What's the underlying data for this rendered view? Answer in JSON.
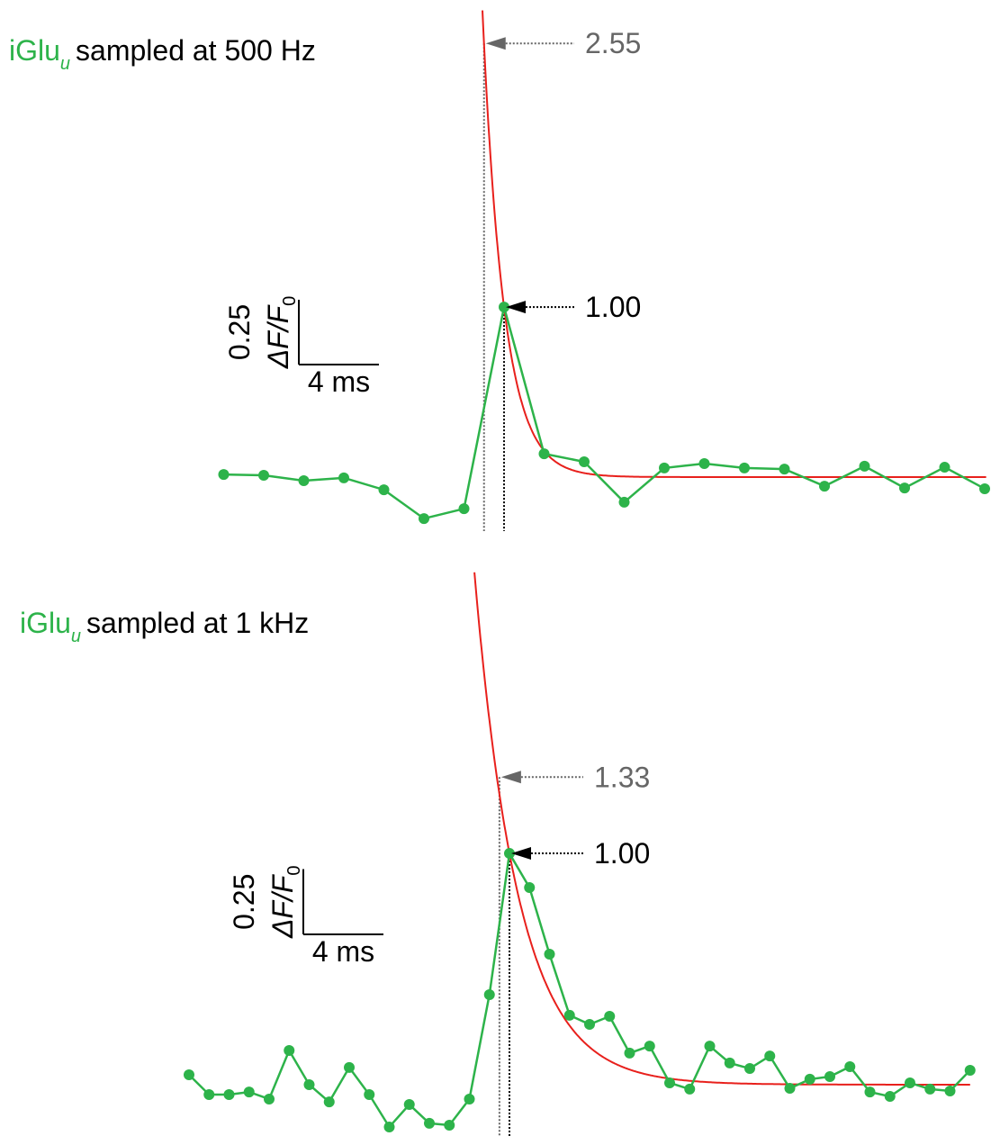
{
  "chart_data": [
    {
      "type": "line",
      "title_prefix": "iGlu",
      "title_subscript": "u",
      "title": "sampled at 500 Hz",
      "x": [
        -14,
        -12,
        -10,
        -8,
        -6,
        -4,
        -2,
        0,
        2,
        4,
        6,
        8,
        10,
        12,
        14,
        16,
        18,
        20,
        22,
        24
      ],
      "values": [
        0.01,
        0.007,
        -0.014,
        -0.003,
        -0.049,
        -0.16,
        -0.122,
        0.656,
        0.09,
        0.059,
        -0.097,
        0.035,
        0.052,
        0.035,
        0.031,
        -0.035,
        0.042,
        -0.042,
        0.038,
        -0.045
      ],
      "color": "#2db34a",
      "fit": {
        "amplitude": 0.656,
        "tau_ms": 1.07,
        "start_ms": -1.08,
        "end_ms": 24.1,
        "color": "#e8201c"
      },
      "annotations": [
        {
          "x": -1,
          "value": 2.55,
          "label": "2.55",
          "color": "#666666"
        },
        {
          "x": 0,
          "value": 1,
          "label": "1.00",
          "color": "#000000"
        }
      ],
      "scale_bar": {
        "x": {
          "value": 4,
          "label": "4 ms"
        },
        "y": 0.25,
        "y_unit": "ΔF/F",
        "y_unit_sub": "0"
      }
    },
    {
      "type": "line",
      "title_prefix": "iGlu",
      "title_subscript": "u",
      "title": "sampled at 1 kHz",
      "x": [
        -16,
        -15,
        -14,
        -13,
        -12,
        -11,
        -10,
        -9,
        -8,
        -7,
        -6,
        -5,
        -4,
        -3,
        -2,
        -1,
        0,
        1,
        2,
        3,
        4,
        5,
        6,
        7,
        8,
        9,
        10,
        11,
        12,
        13,
        14,
        15,
        16,
        17,
        18,
        19,
        20,
        21,
        22,
        23
      ],
      "values": [
        0.038,
        -0.038,
        -0.038,
        -0.028,
        -0.055,
        0.131,
        0.0,
        -0.066,
        0.066,
        -0.038,
        -0.162,
        -0.076,
        -0.148,
        -0.155,
        -0.055,
        0.345,
        0.886,
        0.755,
        0.5,
        0.266,
        0.231,
        0.262,
        0.121,
        0.148,
        0.007,
        -0.017,
        0.148,
        0.083,
        0.062,
        0.11,
        -0.014,
        0.021,
        0.031,
        0.069,
        -0.028,
        -0.045,
        0.007,
        -0.017,
        -0.024,
        0.055
      ],
      "color": "#2db34a",
      "fit": {
        "amplitude": 0.886,
        "tau_ms": 2.2,
        "start_ms": -1.75,
        "end_ms": 23,
        "color": "#e8201c"
      },
      "annotations": [
        {
          "x": -0.5,
          "value": 1.33,
          "label": "1.33",
          "color": "#666666"
        },
        {
          "x": 0,
          "value": 1,
          "label": "1.00",
          "color": "#000000"
        }
      ],
      "scale_bar": {
        "x": {
          "value": 4,
          "label": "4 ms"
        },
        "y": 0.25,
        "y_unit": "ΔF/F",
        "y_unit_sub": "0"
      }
    }
  ]
}
